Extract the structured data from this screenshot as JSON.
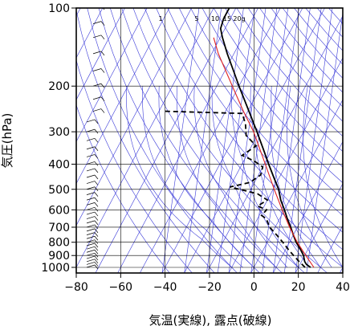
{
  "chart_data": {
    "type": "line",
    "subtype": "skew-t-log-p",
    "xlabel": "気温(実線), 露点(破線)",
    "ylabel": "気圧(hPa)",
    "xlim": [
      -80,
      40
    ],
    "ylim": [
      1050,
      100
    ],
    "y_scale": "log",
    "x_ticks": [
      "−80",
      "−60",
      "−40",
      "−20",
      "0",
      "20",
      "40"
    ],
    "x_tick_values": [
      -80,
      -60,
      -40,
      -20,
      0,
      20,
      40
    ],
    "y_ticks": [
      "100",
      "200",
      "300",
      "400",
      "500",
      "600",
      "700",
      "800",
      "900",
      "1000"
    ],
    "y_tick_values": [
      100,
      200,
      300,
      400,
      500,
      600,
      700,
      800,
      900,
      1000
    ],
    "grid": true,
    "mixing_ratio_labels": [
      "1",
      "5",
      "10",
      "15",
      "20g"
    ],
    "colors": {
      "frame": "#000000",
      "grid": "#000000",
      "background_lines": "#3a3ad8",
      "temperature": "#000000",
      "dewpoint": "#000000",
      "reference": "#e02020",
      "wind_barbs": "#000000"
    },
    "series": [
      {
        "style": "solid",
        "points": [
          {
            "p": 1000,
            "t": 25.5
          },
          {
            "p": 975,
            "t": 23.0
          },
          {
            "p": 950,
            "t": 21.5
          },
          {
            "p": 925,
            "t": 20.5
          },
          {
            "p": 900,
            "t": 19.5
          },
          {
            "p": 850,
            "t": 16.5
          },
          {
            "p": 800,
            "t": 13.0
          },
          {
            "p": 750,
            "t": 10.0
          },
          {
            "p": 700,
            "t": 7.0
          },
          {
            "p": 650,
            "t": 3.5
          },
          {
            "p": 600,
            "t": 0.0
          },
          {
            "p": 550,
            "t": -4.0
          },
          {
            "p": 500,
            "t": -7.5
          },
          {
            "p": 450,
            "t": -12.5
          },
          {
            "p": 400,
            "t": -18.0
          },
          {
            "p": 350,
            "t": -24.0
          },
          {
            "p": 300,
            "t": -31.0
          },
          {
            "p": 250,
            "t": -39.5
          },
          {
            "p": 200,
            "t": -50.0
          },
          {
            "p": 175,
            "t": -56.0
          },
          {
            "p": 150,
            "t": -63.0
          },
          {
            "p": 130,
            "t": -69.0
          },
          {
            "p": 120,
            "t": -72.0
          },
          {
            "p": 110,
            "t": -73.0
          },
          {
            "p": 100,
            "t": -73.0
          }
        ]
      },
      {
        "style": "dashed",
        "points": [
          {
            "p": 1000,
            "t": 23.0
          },
          {
            "p": 950,
            "t": 19.0
          },
          {
            "p": 900,
            "t": 15.0
          },
          {
            "p": 850,
            "t": 11.0
          },
          {
            "p": 800,
            "t": 7.0
          },
          {
            "p": 750,
            "t": 2.5
          },
          {
            "p": 700,
            "t": -2.5
          },
          {
            "p": 650,
            "t": -6.0
          },
          {
            "p": 630,
            "t": -9.0
          },
          {
            "p": 600,
            "t": -8.0
          },
          {
            "p": 580,
            "t": -13.0
          },
          {
            "p": 550,
            "t": -10.0
          },
          {
            "p": 520,
            "t": -16.0
          },
          {
            "p": 500,
            "t": -25.0
          },
          {
            "p": 490,
            "t": -30.0
          },
          {
            "p": 470,
            "t": -22.0
          },
          {
            "p": 440,
            "t": -19.0
          },
          {
            "p": 410,
            "t": -20.0
          },
          {
            "p": 390,
            "t": -25.0
          },
          {
            "p": 370,
            "t": -32.0
          },
          {
            "p": 340,
            "t": -28.0
          },
          {
            "p": 310,
            "t": -35.0
          },
          {
            "p": 280,
            "t": -38.0
          },
          {
            "p": 255,
            "t": -42.0
          },
          {
            "p": 250,
            "t": -78.0
          }
        ]
      },
      {
        "style": "solid-red",
        "points": [
          {
            "p": 1000,
            "t": 27.0
          },
          {
            "p": 900,
            "t": 20.5
          },
          {
            "p": 800,
            "t": 13.5
          },
          {
            "p": 700,
            "t": 6.5
          },
          {
            "p": 600,
            "t": -1.0
          },
          {
            "p": 500,
            "t": -9.5
          },
          {
            "p": 400,
            "t": -19.5
          },
          {
            "p": 300,
            "t": -32.5
          },
          {
            "p": 250,
            "t": -42.0
          },
          {
            "p": 200,
            "t": -53.0
          },
          {
            "p": 150,
            "t": -67.0
          },
          {
            "p": 130,
            "t": -73.0
          }
        ]
      }
    ],
    "wind_barbs": [
      {
        "p": 1000
      },
      {
        "p": 975
      },
      {
        "p": 950
      },
      {
        "p": 925
      },
      {
        "p": 900
      },
      {
        "p": 875
      },
      {
        "p": 850
      },
      {
        "p": 825
      },
      {
        "p": 800
      },
      {
        "p": 775
      },
      {
        "p": 750
      },
      {
        "p": 725
      },
      {
        "p": 700
      },
      {
        "p": 675
      },
      {
        "p": 650
      },
      {
        "p": 625
      },
      {
        "p": 600
      },
      {
        "p": 575
      },
      {
        "p": 550
      },
      {
        "p": 525
      },
      {
        "p": 500
      },
      {
        "p": 475
      },
      {
        "p": 450
      },
      {
        "p": 425
      },
      {
        "p": 400
      },
      {
        "p": 375
      },
      {
        "p": 350
      },
      {
        "p": 325
      },
      {
        "p": 300
      },
      {
        "p": 275
      },
      {
        "p": 250
      },
      {
        "p": 225
      },
      {
        "p": 200
      },
      {
        "p": 175
      },
      {
        "p": 150
      },
      {
        "p": 130
      },
      {
        "p": 115
      },
      {
        "p": 100
      }
    ]
  }
}
